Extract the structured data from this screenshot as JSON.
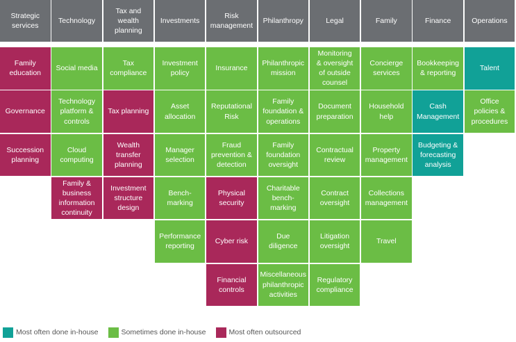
{
  "legend": [
    {
      "key": "in",
      "label": "Most often done in-house",
      "color": "#11a197"
    },
    {
      "key": "some",
      "label": "Sometimes done in-house",
      "color": "#6bbd45"
    },
    {
      "key": "out",
      "label": "Most often outsourced",
      "color": "#a9285a"
    }
  ],
  "columns": [
    {
      "header": "Strategic\nservices",
      "items": [
        {
          "label": "Family\neducation",
          "status": "out"
        },
        {
          "label": "Governance",
          "status": "out"
        },
        {
          "label": "Succession\nplanning",
          "status": "out"
        }
      ]
    },
    {
      "header": "Technology",
      "items": [
        {
          "label": "Social media",
          "status": "some"
        },
        {
          "label": "Technology\nplatform &\ncontrols",
          "status": "some"
        },
        {
          "label": "Cloud\ncomputing",
          "status": "some"
        },
        {
          "label": "Family &\nbusiness\ninformation\ncontinuity",
          "status": "out"
        }
      ]
    },
    {
      "header": "Tax and\nwealth\nplanning",
      "items": [
        {
          "label": "Tax\ncompliance",
          "status": "some"
        },
        {
          "label": "Tax planning",
          "status": "out"
        },
        {
          "label": "Wealth\ntransfer\nplanning",
          "status": "out"
        },
        {
          "label": "Investment\nstructure\ndesign",
          "status": "out"
        }
      ]
    },
    {
      "header": "Investments",
      "items": [
        {
          "label": "Investment\npolicy",
          "status": "some"
        },
        {
          "label": "Asset\nallocation",
          "status": "some"
        },
        {
          "label": "Manager\nselection",
          "status": "some"
        },
        {
          "label": "Bench-\nmarking",
          "status": "some"
        },
        {
          "label": "Performance\nreporting",
          "status": "some"
        }
      ]
    },
    {
      "header": "Risk\nmanagement",
      "items": [
        {
          "label": "Insurance",
          "status": "some"
        },
        {
          "label": "Reputational\nRisk",
          "status": "some"
        },
        {
          "label": "Fraud\nprevention &\ndetection",
          "status": "some"
        },
        {
          "label": "Physical\nsecurity",
          "status": "out"
        },
        {
          "label": "Cyber risk",
          "status": "out"
        },
        {
          "label": "Financial\ncontrols",
          "status": "out"
        }
      ]
    },
    {
      "header": "Philanthropy",
      "items": [
        {
          "label": "Philanthropic\nmission",
          "status": "some"
        },
        {
          "label": "Family\nfoundation &\noperations",
          "status": "some"
        },
        {
          "label": "Family\nfoundation\noversight",
          "status": "some"
        },
        {
          "label": "Charitable\nbench-\nmarking",
          "status": "some"
        },
        {
          "label": "Due\ndiligence",
          "status": "some"
        },
        {
          "label": "Miscellaneous\nphilanthropic\nactivities",
          "status": "some"
        }
      ]
    },
    {
      "header": "Legal",
      "items": [
        {
          "label": "Monitoring\n& oversight\nof outside\ncounsel",
          "status": "some"
        },
        {
          "label": "Document\npreparation",
          "status": "some"
        },
        {
          "label": "Contractual\nreview",
          "status": "some"
        },
        {
          "label": "Contract\noversight",
          "status": "some"
        },
        {
          "label": "Litigation\noversight",
          "status": "some"
        },
        {
          "label": "Regulatory\ncompliance",
          "status": "some"
        }
      ]
    },
    {
      "header": "Family",
      "items": [
        {
          "label": "Concierge\nservices",
          "status": "some"
        },
        {
          "label": "Household\nhelp",
          "status": "some"
        },
        {
          "label": "Property\nmanagement",
          "status": "some"
        },
        {
          "label": "Collections\nmanagement",
          "status": "some"
        },
        {
          "label": "Travel",
          "status": "some"
        }
      ]
    },
    {
      "header": "Finance",
      "items": [
        {
          "label": "Bookkeeping\n& reporting",
          "status": "some"
        },
        {
          "label": "Cash\nManagement",
          "status": "in"
        },
        {
          "label": "Budgeting &\nforecasting\nanalysis",
          "status": "in"
        }
      ]
    },
    {
      "header": "Operations",
      "items": [
        {
          "label": "Talent",
          "status": "in"
        },
        {
          "label": "Office\npolicies &\nprocedures",
          "status": "some"
        }
      ]
    }
  ]
}
